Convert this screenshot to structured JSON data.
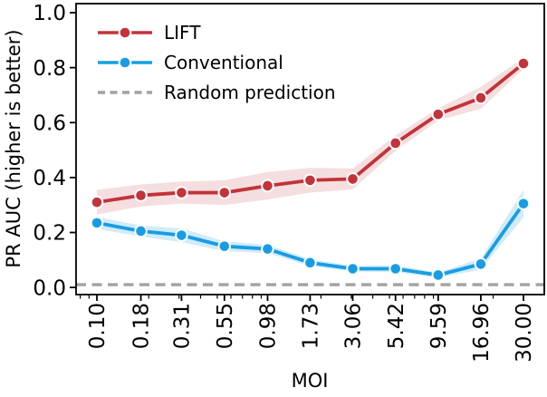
{
  "chart_data": {
    "type": "line",
    "title": "",
    "xlabel": "MOI",
    "ylabel": "PR AUC (higher is better)",
    "x_scale": "log",
    "x": [
      0.1,
      0.18,
      0.31,
      0.55,
      0.98,
      1.73,
      3.06,
      5.42,
      9.59,
      16.96,
      30.0
    ],
    "x_tick_labels": [
      "0.10",
      "0.18",
      "0.31",
      "0.55",
      "0.98",
      "1.73",
      "3.06",
      "5.42",
      "9.59",
      "16.96",
      "30.00"
    ],
    "y_ticks": [
      0.0,
      0.2,
      0.4,
      0.6,
      0.8,
      1.0
    ],
    "ylim": [
      -0.026,
      1.033
    ],
    "grid": false,
    "legend_position": "upper-left",
    "series": [
      {
        "name": "LIFT",
        "color": "#c2333a",
        "band_opacity": 0.16,
        "values": [
          0.31,
          0.335,
          0.345,
          0.345,
          0.37,
          0.39,
          0.395,
          0.525,
          0.63,
          0.69,
          0.815
        ],
        "band_halfwidth": [
          0.045,
          0.04,
          0.04,
          0.045,
          0.05,
          0.045,
          0.038,
          0.028,
          0.022,
          0.04,
          0.02
        ]
      },
      {
        "name": "Conventional",
        "color": "#189de4",
        "band_opacity": 0.2,
        "values": [
          0.235,
          0.205,
          0.19,
          0.15,
          0.14,
          0.09,
          0.068,
          0.068,
          0.045,
          0.085,
          0.305
        ],
        "band_halfwidth": [
          0.022,
          0.02,
          0.025,
          0.018,
          0.015,
          0.013,
          0.01,
          0.012,
          0.01,
          0.02,
          0.05
        ]
      }
    ],
    "reference_line": {
      "name": "Random prediction",
      "value": 0.01,
      "color": "#a2a2a2",
      "style": "dashed"
    }
  }
}
